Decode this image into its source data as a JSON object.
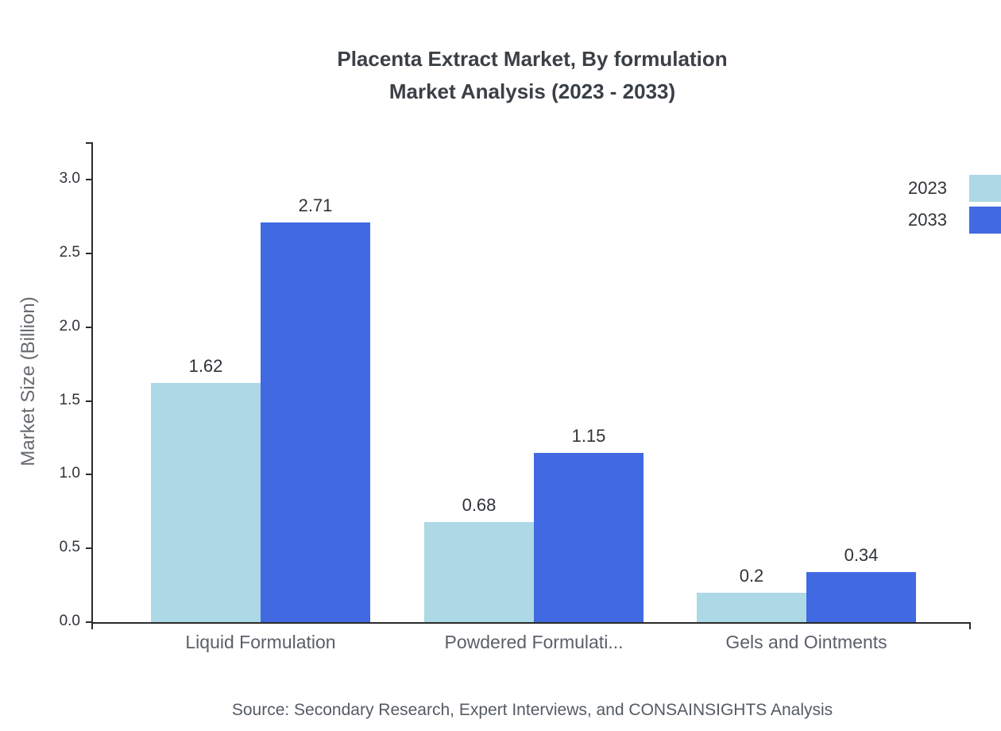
{
  "title": {
    "line1": "Placenta Extract Market, By formulation",
    "line2": "Market Analysis (2023 - 2033)"
  },
  "source": "Source: Secondary Research, Expert Interviews, and CONSAINSIGHTS Analysis",
  "chart_data": {
    "type": "bar",
    "title": "Placenta Extract Market, By formulation Market Analysis (2023 - 2033)",
    "categories": [
      "Liquid Formulation",
      "Powdered Formulati...",
      "Gels and Ointments"
    ],
    "series": [
      {
        "name": "2023",
        "color": "#add8e6",
        "values": [
          1.62,
          0.68,
          0.2
        ]
      },
      {
        "name": "2033",
        "color": "#4169e1",
        "values": [
          2.71,
          1.15,
          0.34
        ]
      }
    ],
    "xlabel": "",
    "ylabel": "Market Size (Billion)",
    "ylim": [
      0,
      3.25
    ],
    "yticks": [
      0.0,
      0.5,
      1.0,
      1.5,
      2.0,
      2.5,
      3.0
    ],
    "grid": false,
    "legend_position": "top-right"
  }
}
